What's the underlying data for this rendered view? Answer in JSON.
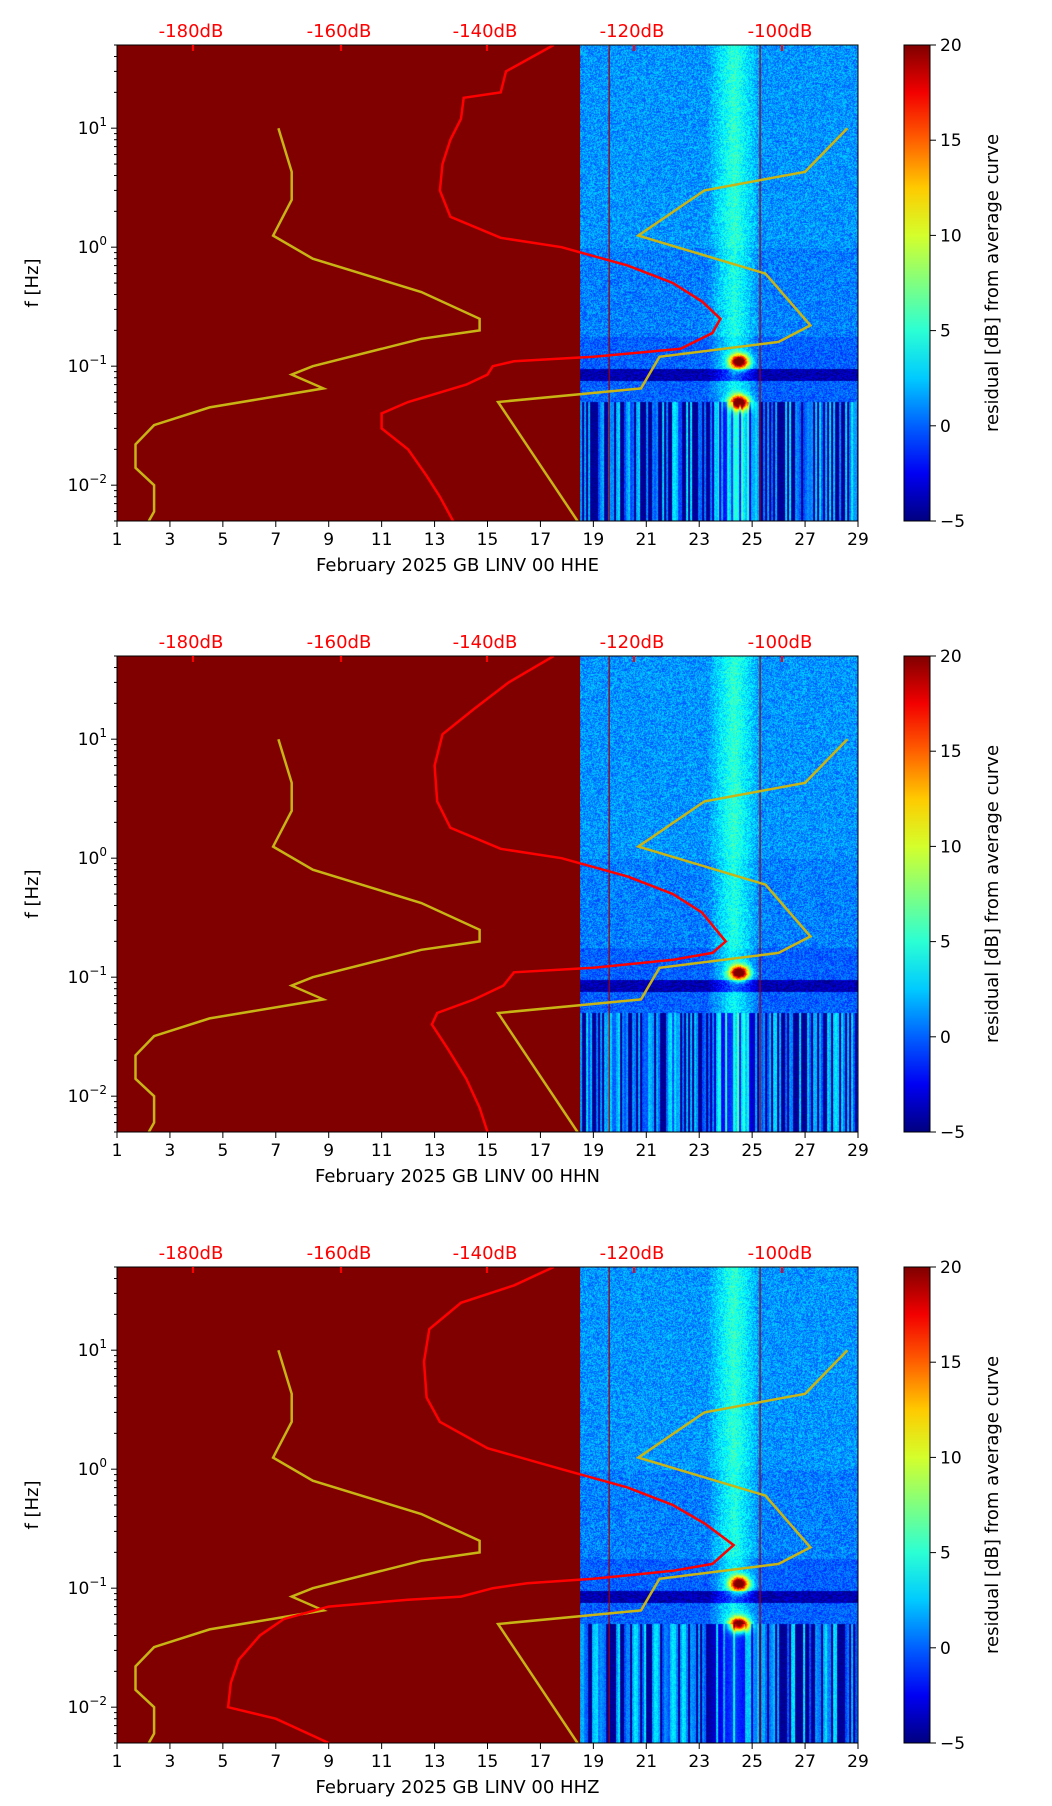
{
  "colors": {
    "background_fill": "#800000",
    "psd_curve": "#ff0000",
    "model_curve": "#c8b414",
    "top_axis": "#ff0000"
  },
  "chart_data": [
    {
      "type": "heatmap",
      "xlabel": "February 2025 GB LINV 00 HHE",
      "ylabel": "f [Hz]",
      "colorbar_label": "residual [dB] from average curve",
      "colorbar_ticks": [
        "20",
        "15",
        "10",
        "5",
        "0",
        "−5"
      ],
      "xticks": [
        "1",
        "3",
        "5",
        "7",
        "9",
        "11",
        "13",
        "15",
        "17",
        "19",
        "21",
        "23",
        "25",
        "27",
        "29"
      ],
      "yticks": [
        "10",
        "10",
        "10",
        "10"
      ],
      "ytick_exps": [
        "1",
        "0",
        "−1",
        "−2"
      ],
      "top_ticks": [
        "-180dB",
        "-160dB",
        "-140dB",
        "-120dB",
        "-100dB"
      ],
      "xlim": [
        1,
        29
      ],
      "ylim": [
        0.005,
        50
      ],
      "data_start_day": 18.5,
      "model_curve": [
        [
          7.1,
          10
        ],
        [
          7.6,
          4.3
        ],
        [
          7.6,
          2.5
        ],
        [
          6.9,
          1.25
        ],
        [
          8.4,
          0.8
        ],
        [
          12.5,
          0.42
        ],
        [
          14.7,
          0.25
        ],
        [
          14.7,
          0.2
        ],
        [
          12.5,
          0.17
        ],
        [
          8.4,
          0.1
        ],
        [
          7.6,
          0.085
        ],
        [
          8.8,
          0.065
        ],
        [
          4.5,
          0.045
        ],
        [
          2.4,
          0.032
        ],
        [
          1.7,
          0.022
        ],
        [
          1.7,
          0.014
        ],
        [
          2.4,
          0.01
        ],
        [
          2.4,
          0.006
        ],
        [
          2.2,
          0.005
        ]
      ],
      "model_curve_2": [
        [
          28.6,
          10
        ],
        [
          27.0,
          4.3
        ],
        [
          23.2,
          3.0
        ],
        [
          20.7,
          1.25
        ],
        [
          25.5,
          0.6
        ],
        [
          27.2,
          0.22
        ],
        [
          26.0,
          0.16
        ],
        [
          21.5,
          0.12
        ],
        [
          20.8,
          0.065
        ],
        [
          15.4,
          0.05
        ],
        [
          18.4,
          0.005
        ]
      ],
      "psd_curve": [
        [
          17.5,
          50
        ],
        [
          15.7,
          30
        ],
        [
          15.5,
          20
        ],
        [
          14.1,
          18
        ],
        [
          14.0,
          12
        ],
        [
          13.6,
          8
        ],
        [
          13.3,
          5
        ],
        [
          13.2,
          3
        ],
        [
          13.6,
          1.8
        ],
        [
          15.5,
          1.2
        ],
        [
          17.8,
          1.0
        ],
        [
          20.3,
          0.7
        ],
        [
          22.0,
          0.5
        ],
        [
          23.1,
          0.35
        ],
        [
          23.8,
          0.25
        ],
        [
          23.5,
          0.19
        ],
        [
          22.3,
          0.14
        ],
        [
          19.0,
          0.12
        ],
        [
          16.0,
          0.11
        ],
        [
          15.2,
          0.1
        ],
        [
          15.0,
          0.085
        ],
        [
          14.2,
          0.07
        ],
        [
          12.0,
          0.05
        ],
        [
          11.0,
          0.04
        ],
        [
          11.0,
          0.03
        ],
        [
          12.0,
          0.02
        ],
        [
          12.7,
          0.012
        ],
        [
          13.2,
          0.008
        ],
        [
          13.7,
          0.005
        ]
      ],
      "hot_spots": [
        [
          24.5,
          0.11
        ],
        [
          24.5,
          0.05
        ]
      ]
    },
    {
      "type": "heatmap",
      "xlabel": "February 2025 GB LINV 00 HHN",
      "ylabel": "f [Hz]",
      "colorbar_label": "residual [dB] from average curve",
      "colorbar_ticks": [
        "20",
        "15",
        "10",
        "5",
        "0",
        "−5"
      ],
      "xticks": [
        "1",
        "3",
        "5",
        "7",
        "9",
        "11",
        "13",
        "15",
        "17",
        "19",
        "21",
        "23",
        "25",
        "27",
        "29"
      ],
      "yticks": [
        "10",
        "10",
        "10",
        "10"
      ],
      "ytick_exps": [
        "1",
        "0",
        "−1",
        "−2"
      ],
      "top_ticks": [
        "-180dB",
        "-160dB",
        "-140dB",
        "-120dB",
        "-100dB"
      ],
      "xlim": [
        1,
        29
      ],
      "ylim": [
        0.005,
        50
      ],
      "data_start_day": 18.5,
      "model_curve": [
        [
          7.1,
          10
        ],
        [
          7.6,
          4.3
        ],
        [
          7.6,
          2.5
        ],
        [
          6.9,
          1.25
        ],
        [
          8.4,
          0.8
        ],
        [
          12.5,
          0.42
        ],
        [
          14.7,
          0.25
        ],
        [
          14.7,
          0.2
        ],
        [
          12.5,
          0.17
        ],
        [
          8.4,
          0.1
        ],
        [
          7.6,
          0.085
        ],
        [
          8.8,
          0.065
        ],
        [
          4.5,
          0.045
        ],
        [
          2.4,
          0.032
        ],
        [
          1.7,
          0.022
        ],
        [
          1.7,
          0.014
        ],
        [
          2.4,
          0.01
        ],
        [
          2.4,
          0.006
        ],
        [
          2.2,
          0.005
        ]
      ],
      "model_curve_2": [
        [
          28.6,
          10
        ],
        [
          27.0,
          4.3
        ],
        [
          23.2,
          3.0
        ],
        [
          20.7,
          1.25
        ],
        [
          25.5,
          0.6
        ],
        [
          27.2,
          0.22
        ],
        [
          26.0,
          0.16
        ],
        [
          21.5,
          0.12
        ],
        [
          20.8,
          0.065
        ],
        [
          15.4,
          0.05
        ],
        [
          18.4,
          0.005
        ]
      ],
      "psd_curve": [
        [
          17.5,
          50
        ],
        [
          15.8,
          30
        ],
        [
          14.5,
          18
        ],
        [
          13.3,
          11
        ],
        [
          13.0,
          6
        ],
        [
          13.1,
          3
        ],
        [
          13.6,
          1.8
        ],
        [
          15.5,
          1.2
        ],
        [
          17.8,
          1.0
        ],
        [
          20.3,
          0.7
        ],
        [
          22.0,
          0.5
        ],
        [
          23.1,
          0.35
        ],
        [
          24.0,
          0.2
        ],
        [
          23.5,
          0.16
        ],
        [
          22.0,
          0.14
        ],
        [
          19.0,
          0.12
        ],
        [
          16.0,
          0.11
        ],
        [
          15.6,
          0.085
        ],
        [
          14.5,
          0.065
        ],
        [
          13.1,
          0.05
        ],
        [
          12.9,
          0.04
        ],
        [
          13.5,
          0.025
        ],
        [
          14.2,
          0.014
        ],
        [
          14.7,
          0.008
        ],
        [
          15.0,
          0.005
        ]
      ],
      "hot_spots": [
        [
          24.5,
          0.11
        ]
      ]
    },
    {
      "type": "heatmap",
      "xlabel": "February 2025 GB LINV 00 HHZ",
      "ylabel": "f [Hz]",
      "colorbar_label": "residual [dB] from average curve",
      "colorbar_ticks": [
        "20",
        "15",
        "10",
        "5",
        "0",
        "−5"
      ],
      "xticks": [
        "1",
        "3",
        "5",
        "7",
        "9",
        "11",
        "13",
        "15",
        "17",
        "19",
        "21",
        "23",
        "25",
        "27",
        "29"
      ],
      "yticks": [
        "10",
        "10",
        "10",
        "10"
      ],
      "ytick_exps": [
        "1",
        "0",
        "−1",
        "−2"
      ],
      "top_ticks": [
        "-180dB",
        "-160dB",
        "-140dB",
        "-120dB",
        "-100dB"
      ],
      "xlim": [
        1,
        29
      ],
      "ylim": [
        0.005,
        50
      ],
      "data_start_day": 18.5,
      "model_curve": [
        [
          7.1,
          10
        ],
        [
          7.6,
          4.3
        ],
        [
          7.6,
          2.5
        ],
        [
          6.9,
          1.25
        ],
        [
          8.4,
          0.8
        ],
        [
          12.5,
          0.42
        ],
        [
          14.7,
          0.25
        ],
        [
          14.7,
          0.2
        ],
        [
          12.5,
          0.17
        ],
        [
          8.4,
          0.1
        ],
        [
          7.6,
          0.085
        ],
        [
          8.8,
          0.065
        ],
        [
          4.5,
          0.045
        ],
        [
          2.4,
          0.032
        ],
        [
          1.7,
          0.022
        ],
        [
          1.7,
          0.014
        ],
        [
          2.4,
          0.01
        ],
        [
          2.4,
          0.006
        ],
        [
          2.2,
          0.005
        ]
      ],
      "model_curve_2": [
        [
          28.6,
          10
        ],
        [
          27.0,
          4.3
        ],
        [
          23.2,
          3.0
        ],
        [
          20.7,
          1.25
        ],
        [
          25.5,
          0.6
        ],
        [
          27.2,
          0.22
        ],
        [
          26.0,
          0.16
        ],
        [
          21.5,
          0.12
        ],
        [
          20.8,
          0.065
        ],
        [
          15.4,
          0.05
        ],
        [
          18.4,
          0.005
        ]
      ],
      "psd_curve": [
        [
          17.5,
          50
        ],
        [
          16.0,
          35
        ],
        [
          14.0,
          25
        ],
        [
          12.8,
          15
        ],
        [
          12.6,
          8
        ],
        [
          12.7,
          4
        ],
        [
          13.2,
          2.5
        ],
        [
          15.0,
          1.5
        ],
        [
          17.8,
          1.0
        ],
        [
          20.3,
          0.7
        ],
        [
          22.0,
          0.5
        ],
        [
          23.2,
          0.35
        ],
        [
          24.3,
          0.23
        ],
        [
          23.5,
          0.16
        ],
        [
          22.0,
          0.14
        ],
        [
          19.0,
          0.12
        ],
        [
          16.5,
          0.11
        ],
        [
          15.2,
          0.1
        ],
        [
          14.0,
          0.085
        ],
        [
          12.0,
          0.08
        ],
        [
          9.0,
          0.07
        ],
        [
          7.3,
          0.055
        ],
        [
          6.4,
          0.04
        ],
        [
          5.6,
          0.025
        ],
        [
          5.3,
          0.016
        ],
        [
          5.2,
          0.01
        ],
        [
          7.0,
          0.008
        ],
        [
          9.0,
          0.005
        ]
      ],
      "hot_spots": [
        [
          24.5,
          0.11
        ],
        [
          24.5,
          0.05
        ]
      ]
    }
  ]
}
